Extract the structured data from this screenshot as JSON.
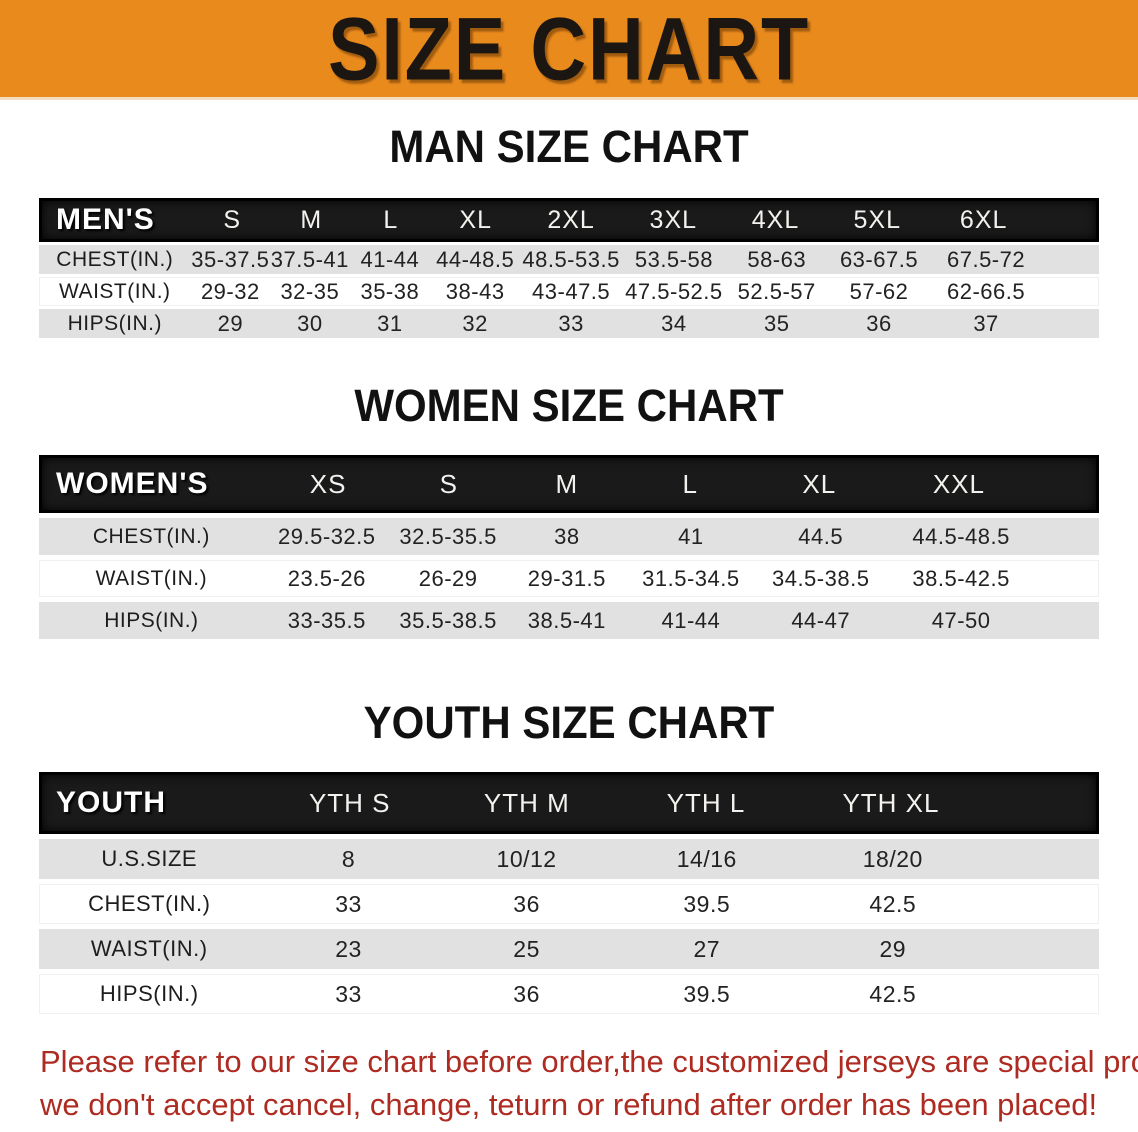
{
  "banner": {
    "title": "SIZE CHART",
    "background_color": "#E98A1D",
    "text_color": "#1B1611"
  },
  "sections": [
    {
      "heading": "MAN SIZE CHART",
      "table": {
        "corner_label": "MEN'S",
        "columns": [
          "S",
          "M",
          "L",
          "XL",
          "2XL",
          "3XL",
          "4XL",
          "5XL",
          "6XL"
        ],
        "rows": [
          {
            "label": "CHEST(IN.)",
            "values": [
              "35-37.5",
              "37.5-41",
              "41-44",
              "44-48.5",
              "48.5-53.5",
              "53.5-58",
              "58-63",
              "63-67.5",
              "67.5-72"
            ]
          },
          {
            "label": "WAIST(IN.)",
            "values": [
              "29-32",
              "32-35",
              "35-38",
              "38-43",
              "43-47.5",
              "47.5-52.5",
              "52.5-57",
              "57-62",
              "62-66.5"
            ]
          },
          {
            "label": "HIPS(IN.)",
            "values": [
              "29",
              "30",
              "31",
              "32",
              "33",
              "34",
              "35",
              "36",
              "37"
            ]
          }
        ]
      }
    },
    {
      "heading": "WOMEN SIZE CHART",
      "table": {
        "corner_label": "WOMEN'S",
        "columns": [
          "XS",
          "S",
          "M",
          "L",
          "XL",
          "XXL"
        ],
        "rows": [
          {
            "label": "CHEST(IN.)",
            "values": [
              "29.5-32.5",
              "32.5-35.5",
              "38",
              "41",
              "44.5",
              "44.5-48.5"
            ]
          },
          {
            "label": "WAIST(IN.)",
            "values": [
              "23.5-26",
              "26-29",
              "29-31.5",
              "31.5-34.5",
              "34.5-38.5",
              "38.5-42.5"
            ]
          },
          {
            "label": "HIPS(IN.)",
            "values": [
              "33-35.5",
              "35.5-38.5",
              "38.5-41",
              "41-44",
              "44-47",
              "47-50"
            ]
          }
        ]
      }
    },
    {
      "heading": "YOUTH SIZE CHART",
      "table": {
        "corner_label": "YOUTH",
        "columns": [
          "YTH S",
          "YTH M",
          "YTH L",
          "YTH XL"
        ],
        "rows": [
          {
            "label": "U.S.SIZE",
            "values": [
              "8",
              "10/12",
              "14/16",
              "18/20"
            ]
          },
          {
            "label": "CHEST(IN.)",
            "values": [
              "33",
              "36",
              "39.5",
              "42.5"
            ]
          },
          {
            "label": "WAIST(IN.)",
            "values": [
              "23",
              "25",
              "27",
              "29"
            ]
          },
          {
            "label": "HIPS(IN.)",
            "values": [
              "33",
              "36",
              "39.5",
              "42.5"
            ]
          }
        ]
      }
    }
  ],
  "footer": {
    "line1": "Please refer to our size chart before order,the customized jerseys are special products,",
    "line2": "we don't accept cancel, change, teturn or refund after order has been placed!",
    "text_color": "#AE2B22"
  },
  "table_style_colors": {
    "header_bar": "#1A1A1A",
    "row_gray": "#E1E1E1",
    "row_white": "#FFFFFF"
  }
}
